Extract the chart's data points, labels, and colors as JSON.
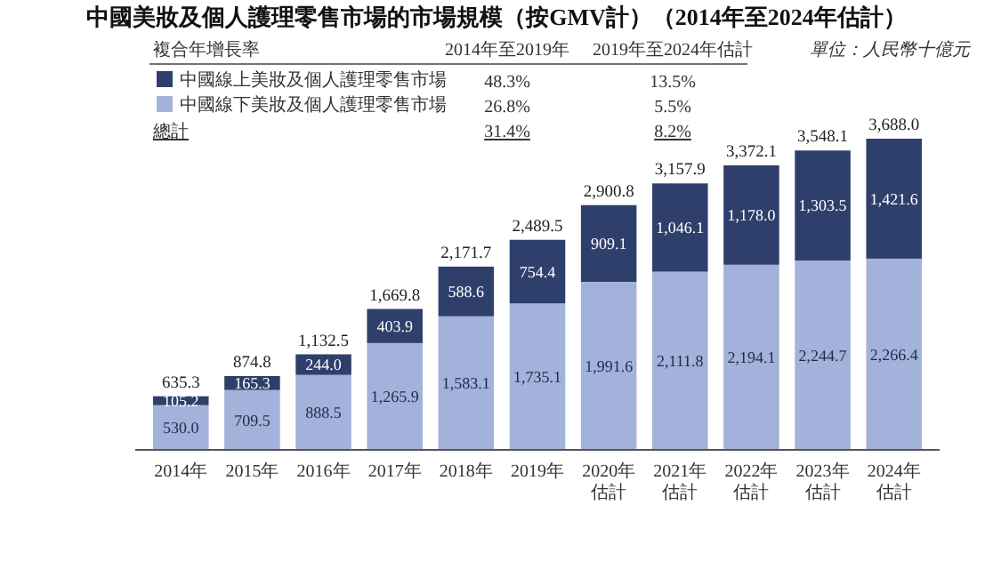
{
  "chart_data": {
    "type": "bar",
    "stacked": true,
    "title": "中國美妝及個人護理零售市場的市場規模（按GMV計）（2014年至2024年估計）",
    "categories": [
      "2014年",
      "2015年",
      "2016年",
      "2017年",
      "2018年",
      "2019年",
      "2020年估計",
      "2021年估計",
      "2022年估計",
      "2023年估計",
      "2024年估計"
    ],
    "series": [
      {
        "name": "中國線下美妝及個人護理零售市場",
        "color": "#a3b2da",
        "values": [
          530.0,
          709.5,
          888.5,
          1265.9,
          1583.1,
          1735.1,
          1991.6,
          2111.8,
          2194.1,
          2244.7,
          2266.4
        ],
        "value_labels": [
          "530.0",
          "709.5",
          "888.5",
          "1,265.9",
          "1,583.1",
          "1,735.1",
          "1,991.6",
          "2,111.8",
          "2,194.1",
          "2,244.7",
          "2,266.4"
        ]
      },
      {
        "name": "中國線上美妝及個人護理零售市場",
        "color": "#2f3f6b",
        "values": [
          105.2,
          165.3,
          244.0,
          403.9,
          588.6,
          754.4,
          909.1,
          1046.1,
          1178.0,
          1303.5,
          1421.6
        ],
        "value_labels": [
          "105.2",
          "165.3",
          "244.0",
          "403.9",
          "588.6",
          "754.4",
          "909.1",
          "1,046.1",
          "1,178.0",
          "1,303.5",
          "1,421.6"
        ]
      }
    ],
    "totals": [
      "635.3",
      "874.8",
      "1,132.5",
      "1,669.8",
      "2,171.7",
      "2,489.5",
      "2,900.8",
      "3,157.9",
      "3,372.1",
      "3,548.1",
      "3,688.0"
    ],
    "legend": "top left",
    "annotations": [
      "單位：人民幣十億元",
      "複合年增長率",
      "2014年至2019年",
      "2019年至2024年估計",
      "48.3%",
      "13.5%",
      "26.8%",
      "5.5%",
      "總計",
      "31.4%",
      "8.2%"
    ]
  }
}
